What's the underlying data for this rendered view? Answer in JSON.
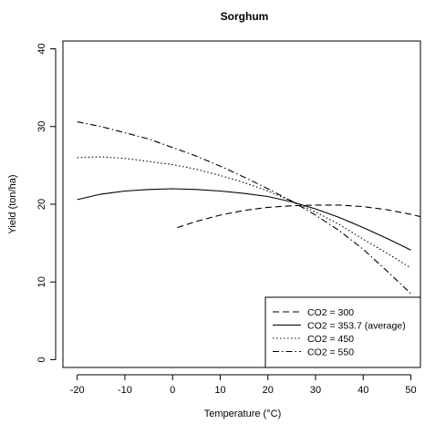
{
  "chart_data": {
    "type": "line",
    "title": "Sorghum",
    "xlabel": "Temperature (°C)",
    "ylabel": "Yield (ton/ha)",
    "xlim": [
      -23,
      52
    ],
    "ylim": [
      -1,
      41
    ],
    "xticks": [
      -20,
      -10,
      0,
      10,
      20,
      30,
      40,
      50
    ],
    "yticks": [
      0,
      10,
      20,
      30,
      40
    ],
    "grid": false,
    "legend_position": "bottom-right",
    "series": [
      {
        "name": "CO2 = 300",
        "dash": "dashed",
        "x": [
          1,
          5,
          10,
          15,
          20,
          25,
          30,
          35,
          40,
          45,
          50,
          52
        ],
        "y": [
          17.0,
          17.8,
          18.6,
          19.2,
          19.6,
          19.8,
          19.9,
          19.9,
          19.7,
          19.3,
          18.7,
          18.4
        ]
      },
      {
        "name": "CO2 = 353.7 (average)",
        "dash": "solid",
        "x": [
          -20,
          -15,
          -10,
          -5,
          0,
          5,
          10,
          15,
          20,
          25,
          30,
          35,
          40,
          45,
          50
        ],
        "y": [
          20.6,
          21.3,
          21.7,
          21.9,
          22.0,
          21.9,
          21.7,
          21.4,
          21.0,
          20.3,
          19.4,
          18.3,
          17.0,
          15.6,
          14.1
        ]
      },
      {
        "name": "CO2 = 450",
        "dash": "dotted",
        "x": [
          -20,
          -15,
          -10,
          -5,
          0,
          5,
          10,
          15,
          20,
          25,
          30,
          35,
          40,
          45,
          50
        ],
        "y": [
          26.0,
          26.1,
          25.9,
          25.5,
          25.1,
          24.5,
          23.7,
          22.8,
          21.7,
          20.4,
          19.0,
          17.4,
          15.5,
          13.7,
          11.8
        ]
      },
      {
        "name": "CO2 = 550",
        "dash": "dash-dot",
        "x": [
          -20,
          -15,
          -10,
          -5,
          0,
          5,
          10,
          15,
          20,
          25,
          30,
          35,
          40,
          45,
          50
        ],
        "y": [
          30.6,
          30.0,
          29.2,
          28.4,
          27.3,
          26.2,
          24.9,
          23.5,
          22.0,
          20.4,
          18.6,
          16.6,
          14.2,
          11.4,
          8.5
        ]
      }
    ]
  }
}
